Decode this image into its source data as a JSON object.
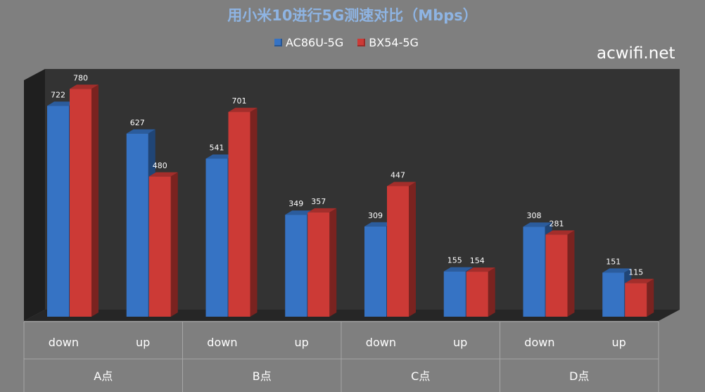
{
  "colors": {
    "series_ac": "#3673c4",
    "series_bx": "#cc3a36",
    "background": "#7f7f7f",
    "plot": "#333333",
    "title": "#8eb4e3"
  },
  "watermark": "acwifi.net",
  "chart_data": {
    "type": "bar",
    "title": "用小米10进行5G测速对比（Mbps）",
    "categories": [
      "down",
      "up",
      "down",
      "up",
      "down",
      "up",
      "down",
      "up"
    ],
    "groups": [
      "A点",
      "B点",
      "C点",
      "D点"
    ],
    "series": [
      {
        "name": "AC86U-5G",
        "values": [
          722,
          627,
          541,
          349,
          309,
          155,
          308,
          151
        ]
      },
      {
        "name": "BX54-5G",
        "values": [
          780,
          480,
          701,
          357,
          447,
          154,
          281,
          115
        ]
      }
    ],
    "ylim": [
      0,
      800
    ],
    "legend": "top-center",
    "grid": false,
    "bar_style": "3d"
  }
}
